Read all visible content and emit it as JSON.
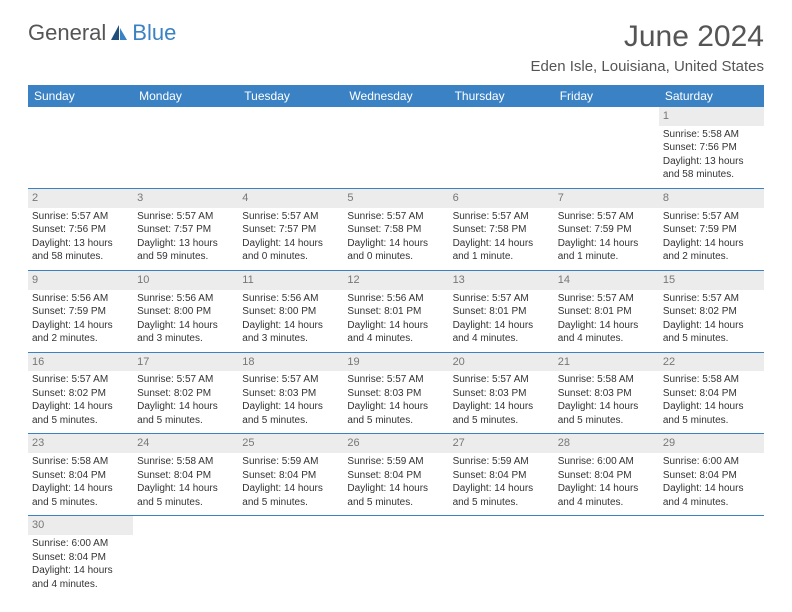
{
  "brand": {
    "part1": "General",
    "part2": "Blue"
  },
  "title": "June 2024",
  "location": "Eden Isle, Louisiana, United States",
  "day_headers": [
    "Sunday",
    "Monday",
    "Tuesday",
    "Wednesday",
    "Thursday",
    "Friday",
    "Saturday"
  ],
  "colors": {
    "header_bg": "#3b82c4",
    "header_fg": "#ffffff",
    "daynum_bg": "#ececec",
    "text": "#333333",
    "row_border": "#3b82c4"
  },
  "first_weekday": 6,
  "days_in_month": 30,
  "days": {
    "1": {
      "sunrise": "5:58 AM",
      "sunset": "7:56 PM",
      "daylight": "13 hours and 58 minutes."
    },
    "2": {
      "sunrise": "5:57 AM",
      "sunset": "7:56 PM",
      "daylight": "13 hours and 58 minutes."
    },
    "3": {
      "sunrise": "5:57 AM",
      "sunset": "7:57 PM",
      "daylight": "13 hours and 59 minutes."
    },
    "4": {
      "sunrise": "5:57 AM",
      "sunset": "7:57 PM",
      "daylight": "14 hours and 0 minutes."
    },
    "5": {
      "sunrise": "5:57 AM",
      "sunset": "7:58 PM",
      "daylight": "14 hours and 0 minutes."
    },
    "6": {
      "sunrise": "5:57 AM",
      "sunset": "7:58 PM",
      "daylight": "14 hours and 1 minute."
    },
    "7": {
      "sunrise": "5:57 AM",
      "sunset": "7:59 PM",
      "daylight": "14 hours and 1 minute."
    },
    "8": {
      "sunrise": "5:57 AM",
      "sunset": "7:59 PM",
      "daylight": "14 hours and 2 minutes."
    },
    "9": {
      "sunrise": "5:56 AM",
      "sunset": "7:59 PM",
      "daylight": "14 hours and 2 minutes."
    },
    "10": {
      "sunrise": "5:56 AM",
      "sunset": "8:00 PM",
      "daylight": "14 hours and 3 minutes."
    },
    "11": {
      "sunrise": "5:56 AM",
      "sunset": "8:00 PM",
      "daylight": "14 hours and 3 minutes."
    },
    "12": {
      "sunrise": "5:56 AM",
      "sunset": "8:01 PM",
      "daylight": "14 hours and 4 minutes."
    },
    "13": {
      "sunrise": "5:57 AM",
      "sunset": "8:01 PM",
      "daylight": "14 hours and 4 minutes."
    },
    "14": {
      "sunrise": "5:57 AM",
      "sunset": "8:01 PM",
      "daylight": "14 hours and 4 minutes."
    },
    "15": {
      "sunrise": "5:57 AM",
      "sunset": "8:02 PM",
      "daylight": "14 hours and 5 minutes."
    },
    "16": {
      "sunrise": "5:57 AM",
      "sunset": "8:02 PM",
      "daylight": "14 hours and 5 minutes."
    },
    "17": {
      "sunrise": "5:57 AM",
      "sunset": "8:02 PM",
      "daylight": "14 hours and 5 minutes."
    },
    "18": {
      "sunrise": "5:57 AM",
      "sunset": "8:03 PM",
      "daylight": "14 hours and 5 minutes."
    },
    "19": {
      "sunrise": "5:57 AM",
      "sunset": "8:03 PM",
      "daylight": "14 hours and 5 minutes."
    },
    "20": {
      "sunrise": "5:57 AM",
      "sunset": "8:03 PM",
      "daylight": "14 hours and 5 minutes."
    },
    "21": {
      "sunrise": "5:58 AM",
      "sunset": "8:03 PM",
      "daylight": "14 hours and 5 minutes."
    },
    "22": {
      "sunrise": "5:58 AM",
      "sunset": "8:04 PM",
      "daylight": "14 hours and 5 minutes."
    },
    "23": {
      "sunrise": "5:58 AM",
      "sunset": "8:04 PM",
      "daylight": "14 hours and 5 minutes."
    },
    "24": {
      "sunrise": "5:58 AM",
      "sunset": "8:04 PM",
      "daylight": "14 hours and 5 minutes."
    },
    "25": {
      "sunrise": "5:59 AM",
      "sunset": "8:04 PM",
      "daylight": "14 hours and 5 minutes."
    },
    "26": {
      "sunrise": "5:59 AM",
      "sunset": "8:04 PM",
      "daylight": "14 hours and 5 minutes."
    },
    "27": {
      "sunrise": "5:59 AM",
      "sunset": "8:04 PM",
      "daylight": "14 hours and 5 minutes."
    },
    "28": {
      "sunrise": "6:00 AM",
      "sunset": "8:04 PM",
      "daylight": "14 hours and 4 minutes."
    },
    "29": {
      "sunrise": "6:00 AM",
      "sunset": "8:04 PM",
      "daylight": "14 hours and 4 minutes."
    },
    "30": {
      "sunrise": "6:00 AM",
      "sunset": "8:04 PM",
      "daylight": "14 hours and 4 minutes."
    }
  },
  "labels": {
    "sunrise": "Sunrise:",
    "sunset": "Sunset:",
    "daylight": "Daylight:"
  }
}
